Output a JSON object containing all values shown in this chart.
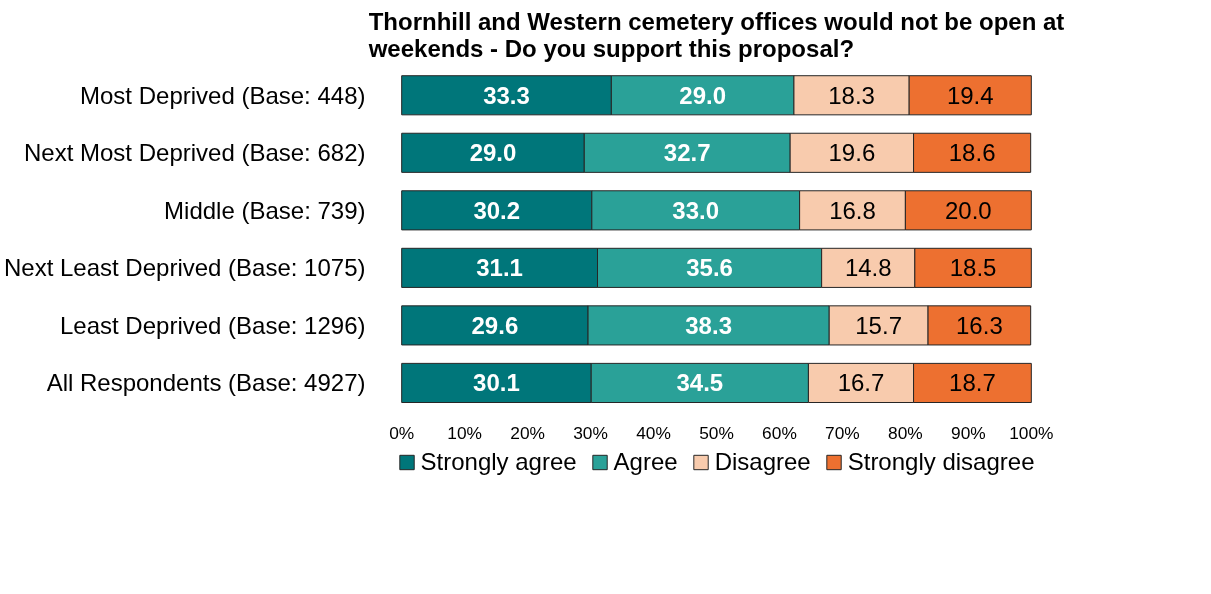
{
  "chart_data": {
    "type": "bar",
    "orientation": "horizontal",
    "stacked": true,
    "title": "Thornhill and Western cemetery offices would not be open at weekends -  Do you support this proposal?",
    "categories": [
      "Most Deprived (Base: 448)",
      "Next Most Deprived (Base: 682)",
      "Middle (Base: 739)",
      "Next Least Deprived (Base: 1075)",
      "Least Deprived (Base: 1296)",
      "All Respondents (Base: 4927)"
    ],
    "series": [
      {
        "name": "Strongly agree",
        "color": "#00767a",
        "values": [
          33.3,
          29.0,
          30.2,
          31.1,
          29.6,
          30.1
        ],
        "value_labels": [
          "33.3",
          "29.0",
          "30.2",
          "31.1",
          "29.6",
          "30.1"
        ]
      },
      {
        "name": "Agree",
        "color": "#2aa198",
        "values": [
          29.0,
          32.7,
          33.0,
          35.6,
          38.3,
          34.5
        ],
        "value_labels": [
          "29.0",
          "32.7",
          "33.0",
          "35.6",
          "38.3",
          "34.5"
        ]
      },
      {
        "name": "Disagree",
        "color": "#f8cbad",
        "values": [
          18.3,
          19.6,
          16.8,
          14.8,
          15.7,
          16.7
        ],
        "value_labels": [
          "18.3",
          "19.6",
          "16.8",
          "14.8",
          "15.7",
          "16.7"
        ]
      },
      {
        "name": "Strongly disagree",
        "color": "#ed7030",
        "values": [
          19.4,
          18.6,
          20.0,
          18.5,
          16.3,
          18.7
        ],
        "value_labels": [
          "19.4",
          "18.6",
          "20.0",
          "18.5",
          "16.3",
          "18.7"
        ]
      }
    ],
    "xlim": [
      0,
      100
    ],
    "xticks": [
      {
        "value": 0,
        "label": "0%"
      },
      {
        "value": 10,
        "label": "10%"
      },
      {
        "value": 20,
        "label": "20%"
      },
      {
        "value": 30,
        "label": "30%"
      },
      {
        "value": 40,
        "label": "40%"
      },
      {
        "value": 50,
        "label": "50%"
      },
      {
        "value": 60,
        "label": "60%"
      },
      {
        "value": 70,
        "label": "70%"
      },
      {
        "value": 80,
        "label": "80%"
      },
      {
        "value": 90,
        "label": "90%"
      },
      {
        "value": 100,
        "label": "100%"
      }
    ],
    "grid": false,
    "legend": "bottom"
  }
}
